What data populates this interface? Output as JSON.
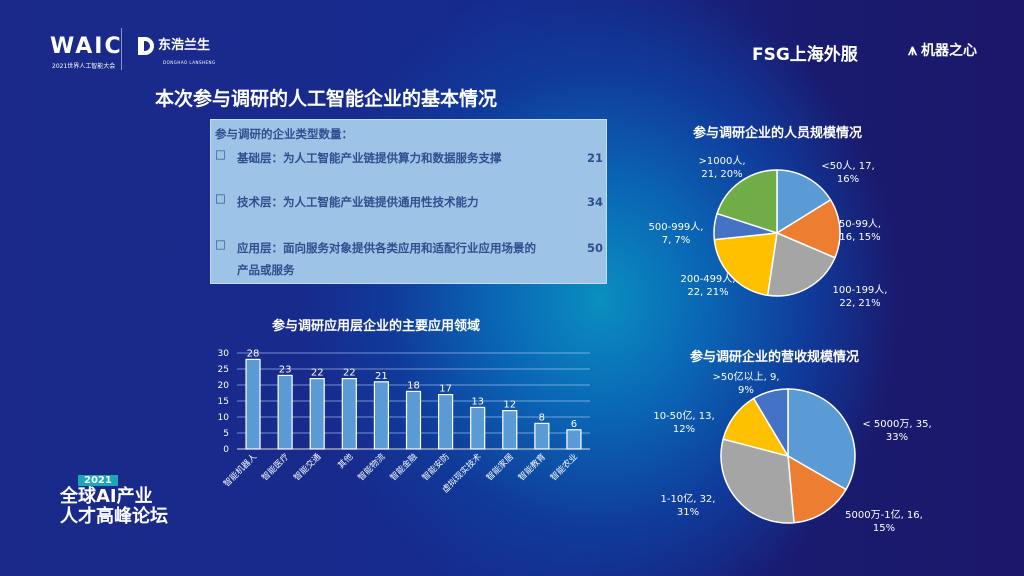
{
  "logos": {
    "waic": "WAIC",
    "waic_sub": "2021世界人工智能大会",
    "donghao": "东浩兰生",
    "donghao_sub": "DONGHAO LANSHENG",
    "fsg": "FSG上海外服",
    "jiqi": "机器之心",
    "forum_year": "2021",
    "forum_line1": "全球AI产业",
    "forum_line2": "人才高峰论坛"
  },
  "page_title": "本次参与调研的人工智能企业的基本情况",
  "summary_box": {
    "heading": "参与调研的企业类型数量：",
    "bullet": "□",
    "items": [
      {
        "text": "基础层：为人工智能产业链提供算力和数据服务支撑",
        "count": "21"
      },
      {
        "text": "技术层：为人工智能产业链提供通用性技术能力",
        "count": "34"
      },
      {
        "text": "应用层：面向服务对象提供各类应用和适配行业应用场景的产品或服务",
        "count": "50"
      }
    ]
  },
  "chart_data": [
    {
      "type": "bar",
      "title": "参与调研应用层企业的主要应用领域",
      "categories": [
        "智能机器人",
        "智能医疗",
        "智能交通",
        "其他",
        "智能物流",
        "智能金融",
        "智能安防",
        "虚拟现实技术",
        "智能家居",
        "智能教育",
        "智能农业"
      ],
      "values": [
        28,
        23,
        22,
        22,
        21,
        18,
        17,
        13,
        12,
        8,
        6
      ],
      "yticks": [
        0,
        5,
        10,
        15,
        20,
        25,
        30
      ],
      "ylim": [
        0,
        30
      ],
      "grid": true,
      "bar_color": "#5b9bd5"
    },
    {
      "type": "pie",
      "title": "参与调研企业的人员规模情况",
      "slices": [
        {
          "label": "<50人",
          "value": 17,
          "percent": "16%",
          "color": "#5b9bd5",
          "text": "<50人, 17,|16%"
        },
        {
          "label": "50-99人",
          "value": 16,
          "percent": "15%",
          "color": "#ed7d31",
          "text": "50-99人,|16, 15%"
        },
        {
          "label": "100-199人",
          "value": 22,
          "percent": "21%",
          "color": "#a5a5a5",
          "text": "100-199人,|22, 21%"
        },
        {
          "label": "200-499人",
          "value": 22,
          "percent": "21%",
          "color": "#ffc000",
          "text": "200-499人,|22, 21%"
        },
        {
          "label": "500-999人",
          "value": 7,
          "percent": "7%",
          "color": "#4472c4",
          "text": "500-999人,|7, 7%"
        },
        {
          "label": ">1000人",
          "value": 21,
          "percent": "20%",
          "color": "#70ad47",
          "text": ">1000人,|21, 20%"
        }
      ]
    },
    {
      "type": "pie",
      "title": "参与调研企业的营收规模情况",
      "slices": [
        {
          "label": "< 5000万",
          "value": 35,
          "percent": "33%",
          "color": "#5b9bd5",
          "text": "< 5000万, 35,|33%"
        },
        {
          "label": "5000万-1亿",
          "value": 16,
          "percent": "15%",
          "color": "#ed7d31",
          "text": "5000万-1亿, 16,|15%"
        },
        {
          "label": "1-10亿",
          "value": 32,
          "percent": "31%",
          "color": "#a5a5a5",
          "text": "1-10亿, 32,|31%"
        },
        {
          "label": "10-50亿",
          "value": 13,
          "percent": "12%",
          "color": "#ffc000",
          "text": "10-50亿, 13,|12%"
        },
        {
          "label": ">50亿以上",
          "value": 9,
          "percent": "9%",
          "color": "#4472c4",
          "text": ">50亿以上, 9,|9%"
        }
      ]
    }
  ]
}
